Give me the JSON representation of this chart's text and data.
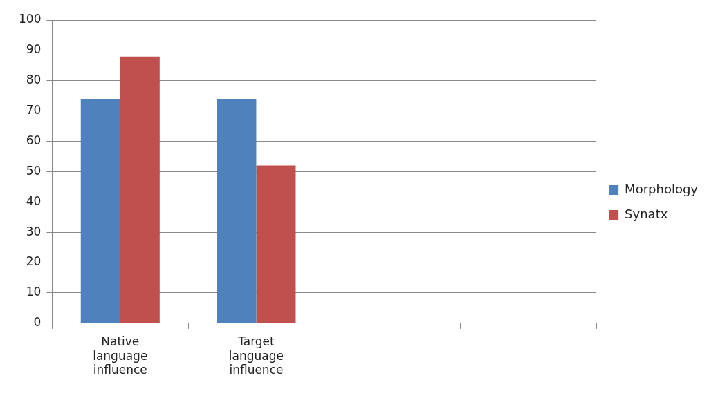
{
  "chart_data": {
    "type": "bar",
    "categories": [
      "Native language influence",
      "Target language influence",
      null,
      null
    ],
    "series": [
      {
        "name": "Morphology",
        "color": "#4f81bd",
        "values": [
          74,
          74,
          null,
          null
        ]
      },
      {
        "name": "Synatx",
        "color": "#c0504d",
        "values": [
          88,
          52,
          null,
          null
        ]
      }
    ],
    "ylim": [
      0,
      100
    ],
    "yticks": [
      0,
      10,
      20,
      30,
      40,
      50,
      60,
      70,
      80,
      90,
      100
    ],
    "grid": "y",
    "legend": "right"
  }
}
